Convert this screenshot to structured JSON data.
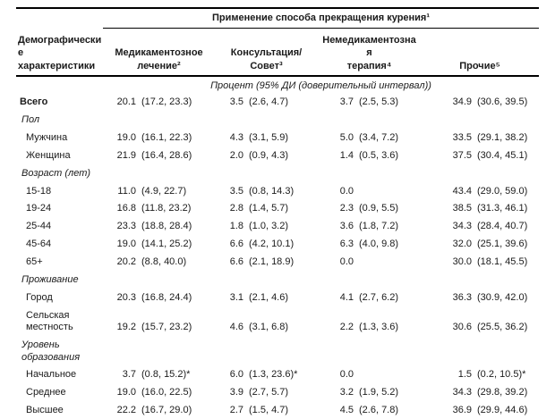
{
  "title": "Применение способа прекращения курения¹",
  "row_header": {
    "full": "Демографические характеристики",
    "lines": [
      "Демографически",
      "е",
      "характеристики"
    ]
  },
  "columns": [
    {
      "label": "Медикаментозное лечение²",
      "lines": [
        "Медикаментозное",
        "лечение²"
      ]
    },
    {
      "label": "Консультация/Совет³",
      "lines": [
        "Консультация/Совет³",
        "",
        ""
      ]
    },
    {
      "label": "Немедикаментозная терапия⁴",
      "lines": [
        "Немедикаментозна",
        "я",
        "терапия⁴"
      ]
    },
    {
      "label": "Прочие⁵",
      "lines": [
        "Прочие⁵",
        "",
        ""
      ]
    }
  ],
  "units_note": "Процент (95% ДИ (доверительный интервал))",
  "rows": [
    {
      "label": "Всего",
      "type": "total",
      "cells": [
        [
          "20.1",
          "(17.2, 23.3)"
        ],
        [
          "3.5",
          "(2.6, 4.7)"
        ],
        [
          "3.7",
          "(2.5, 5.3)"
        ],
        [
          "34.9",
          "(30.6, 39.5)"
        ]
      ]
    },
    {
      "label": "Пол",
      "type": "category"
    },
    {
      "label": "Мужчина",
      "type": "item",
      "cells": [
        [
          "19.0",
          "(16.1, 22.3)"
        ],
        [
          "4.3",
          "(3.1, 5.9)"
        ],
        [
          "5.0",
          "(3.4, 7.2)"
        ],
        [
          "33.5",
          "(29.1, 38.2)"
        ]
      ]
    },
    {
      "label": "Женщина",
      "type": "item",
      "cells": [
        [
          "21.9",
          "(16.4, 28.6)"
        ],
        [
          "2.0",
          "(0.9, 4.3)"
        ],
        [
          "1.4",
          "(0.5, 3.6)"
        ],
        [
          "37.5",
          "(30.4, 45.1)"
        ]
      ]
    },
    {
      "label": "Возраст (лет)",
      "type": "category"
    },
    {
      "label": "15-18",
      "type": "item",
      "cells": [
        [
          "11.0",
          "(4.9, 22.7)"
        ],
        [
          "3.5",
          "(0.8, 14.3)"
        ],
        [
          "0.0",
          ""
        ],
        [
          "43.4",
          "(29.0, 59.0)"
        ]
      ]
    },
    {
      "label": "19-24",
      "type": "item",
      "cells": [
        [
          "16.8",
          "(11.8, 23.2)"
        ],
        [
          "2.8",
          "(1.4, 5.7)"
        ],
        [
          "2.3",
          "(0.9, 5.5)"
        ],
        [
          "38.5",
          "(31.3, 46.1)"
        ]
      ]
    },
    {
      "label": "25-44",
      "type": "item",
      "cells": [
        [
          "23.3",
          "(18.8, 28.4)"
        ],
        [
          "1.8",
          "(1.0, 3.2)"
        ],
        [
          "3.6",
          "(1.8, 7.2)"
        ],
        [
          "34.3",
          "(28.4, 40.7)"
        ]
      ]
    },
    {
      "label": "45-64",
      "type": "item",
      "cells": [
        [
          "19.0",
          "(14.1, 25.2)"
        ],
        [
          "6.6",
          "(4.2, 10.1)"
        ],
        [
          "6.3",
          "(4.0, 9.8)"
        ],
        [
          "32.0",
          "(25.1, 39.6)"
        ]
      ]
    },
    {
      "label": "65+",
      "type": "item",
      "cells": [
        [
          "20.2",
          "(8.8, 40.0)"
        ],
        [
          "6.6",
          "(2.1, 18.9)"
        ],
        [
          "0.0",
          ""
        ],
        [
          "30.0",
          "(18.1, 45.5)"
        ]
      ]
    },
    {
      "label": "Проживание",
      "type": "category"
    },
    {
      "label": "Город",
      "type": "item",
      "cells": [
        [
          "20.3",
          "(16.8, 24.4)"
        ],
        [
          "3.1",
          "(2.1, 4.6)"
        ],
        [
          "4.1",
          "(2.7, 6.2)"
        ],
        [
          "36.3",
          "(30.9, 42.0)"
        ]
      ]
    },
    {
      "label": "Сельская местность",
      "type": "item",
      "lines": [
        "Сельская",
        "местность"
      ],
      "cells": [
        [
          "19.2",
          "(15.7, 23.2)"
        ],
        [
          "4.6",
          "(3.1, 6.8)"
        ],
        [
          "2.2",
          "(1.3, 3.6)"
        ],
        [
          "30.6",
          "(25.5, 36.2)"
        ]
      ]
    },
    {
      "label": "Уровень образования",
      "type": "category",
      "lines": [
        "Уровень",
        "образования"
      ]
    },
    {
      "label": "Начальное",
      "type": "item",
      "cells": [
        [
          "3.7",
          "(0.8, 15.2)*"
        ],
        [
          "6.0",
          "(1.3, 23.6)*"
        ],
        [
          "0.0",
          ""
        ],
        [
          "1.5",
          "(0.2, 10.5)*"
        ]
      ]
    },
    {
      "label": "Среднее",
      "type": "item",
      "cells": [
        [
          "19.0",
          "(16.0, 22.5)"
        ],
        [
          "3.9",
          "(2.7, 5.7)"
        ],
        [
          "3.2",
          "(1.9, 5.2)"
        ],
        [
          "34.3",
          "(29.8, 39.2)"
        ]
      ]
    },
    {
      "label": "Высшее",
      "type": "item",
      "cells": [
        [
          "22.2",
          "(16.7, 29.0)"
        ],
        [
          "2.7",
          "(1.5, 4.7)"
        ],
        [
          "4.5",
          "(2.6, 7.8)"
        ],
        [
          "36.9",
          "(29.9, 44.6)"
        ]
      ]
    }
  ]
}
